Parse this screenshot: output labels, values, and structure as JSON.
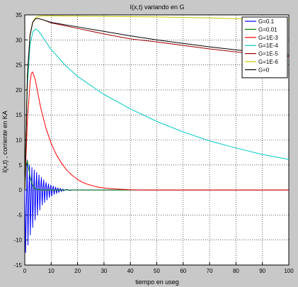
{
  "chart_data": {
    "type": "line",
    "title": "I(x,t) variando en G",
    "xlabel": "tiempo en useg",
    "ylabel": "I(x,t) , corriente en KA",
    "xlim": [
      0,
      100
    ],
    "ylim": [
      -15,
      35
    ],
    "xticks": [
      0,
      10,
      20,
      30,
      40,
      50,
      60,
      70,
      80,
      90,
      100
    ],
    "yticks": [
      -15,
      -10,
      -5,
      0,
      5,
      10,
      15,
      20,
      25,
      30,
      35
    ],
    "grid": true,
    "legend_position": "top-right",
    "background_color": "#ffffff",
    "figure_color": "#c8c8c8",
    "series": [
      {
        "name": "G=0.1",
        "color": "#0000ff",
        "points": [
          [
            0,
            0
          ],
          [
            0.3,
            -12.5
          ],
          [
            0.6,
            -4
          ],
          [
            0.9,
            6
          ],
          [
            1.2,
            -11
          ],
          [
            1.5,
            -2
          ],
          [
            1.8,
            5
          ],
          [
            2.1,
            -9
          ],
          [
            2.4,
            -1
          ],
          [
            2.7,
            4.5
          ],
          [
            3.0,
            -7.5
          ],
          [
            3.3,
            -0.5
          ],
          [
            3.6,
            4
          ],
          [
            3.9,
            -6
          ],
          [
            4.2,
            0
          ],
          [
            4.5,
            3.5
          ],
          [
            4.8,
            -5
          ],
          [
            5.1,
            0.5
          ],
          [
            5.4,
            3
          ],
          [
            5.7,
            -4
          ],
          [
            6.0,
            0.5
          ],
          [
            6.3,
            2.5
          ],
          [
            6.6,
            -3
          ],
          [
            6.9,
            0.5
          ],
          [
            7.2,
            2
          ],
          [
            7.5,
            -2.5
          ],
          [
            7.8,
            0.5
          ],
          [
            8.1,
            1.5
          ],
          [
            8.4,
            -2
          ],
          [
            8.7,
            0.3
          ],
          [
            9.0,
            1.2
          ],
          [
            9.3,
            -1.5
          ],
          [
            9.6,
            0.2
          ],
          [
            9.9,
            1
          ],
          [
            10.2,
            -1.2
          ],
          [
            10.5,
            0.2
          ],
          [
            10.8,
            0.8
          ],
          [
            11.1,
            -0.9
          ],
          [
            11.4,
            0.1
          ],
          [
            11.7,
            0.6
          ],
          [
            12,
            -0.7
          ],
          [
            12.3,
            0.1
          ],
          [
            12.6,
            0.4
          ],
          [
            12.9,
            -0.5
          ],
          [
            13.2,
            0.1
          ],
          [
            13.5,
            0.3
          ],
          [
            13.8,
            -0.3
          ],
          [
            14.1,
            0
          ],
          [
            14.4,
            0.2
          ],
          [
            14.7,
            -0.2
          ],
          [
            15,
            0
          ],
          [
            16,
            0.1
          ],
          [
            17,
            -0.1
          ],
          [
            18,
            0
          ],
          [
            20,
            0
          ],
          [
            100,
            0
          ]
        ]
      },
      {
        "name": "G=0.01",
        "color": "#008000",
        "points": [
          [
            0,
            0
          ],
          [
            0.5,
            5
          ],
          [
            1,
            5.8
          ],
          [
            1.5,
            4.2
          ],
          [
            2,
            2.6
          ],
          [
            3,
            0.9
          ],
          [
            4,
            0.2
          ],
          [
            6,
            0
          ],
          [
            100,
            0
          ]
        ]
      },
      {
        "name": "G=1E-3",
        "color": "#ff0000",
        "points": [
          [
            0,
            0
          ],
          [
            1,
            14
          ],
          [
            2,
            21.5
          ],
          [
            2.5,
            23.3
          ],
          [
            3,
            23.6
          ],
          [
            4,
            22
          ],
          [
            5,
            19.3
          ],
          [
            6,
            16.5
          ],
          [
            8,
            12.4
          ],
          [
            10,
            9.3
          ],
          [
            12,
            7
          ],
          [
            14,
            5.3
          ],
          [
            16,
            3.9
          ],
          [
            18,
            2.9
          ],
          [
            20,
            2.1
          ],
          [
            22,
            1.5
          ],
          [
            24,
            1.1
          ],
          [
            26,
            0.8
          ],
          [
            28,
            0.55
          ],
          [
            30,
            0.4
          ],
          [
            33,
            0.25
          ],
          [
            36,
            0.15
          ],
          [
            40,
            0.05
          ],
          [
            45,
            0
          ],
          [
            100,
            0
          ]
        ]
      },
      {
        "name": "G=1E-4",
        "color": "#00c8c8",
        "points": [
          [
            0,
            0
          ],
          [
            1,
            21
          ],
          [
            2,
            29
          ],
          [
            3,
            31.5
          ],
          [
            4,
            32.2
          ],
          [
            5,
            31.9
          ],
          [
            6,
            31.2
          ],
          [
            8,
            29.6
          ],
          [
            10,
            28.1
          ],
          [
            15,
            25.1
          ],
          [
            20,
            22.7
          ],
          [
            30,
            19.1
          ],
          [
            40,
            16.2
          ],
          [
            50,
            13.7
          ],
          [
            60,
            11.6
          ],
          [
            70,
            9.8
          ],
          [
            80,
            8.4
          ],
          [
            90,
            7.1
          ],
          [
            100,
            6.1
          ]
        ]
      },
      {
        "name": "G=1E-5",
        "color": "#a00000",
        "points": [
          [
            0,
            0
          ],
          [
            1,
            23
          ],
          [
            2,
            31
          ],
          [
            3,
            33.5
          ],
          [
            4,
            34.2
          ],
          [
            5,
            34.3
          ],
          [
            7,
            34
          ],
          [
            10,
            33.4
          ],
          [
            20,
            32.3
          ],
          [
            30,
            31.2
          ],
          [
            40,
            30.2
          ],
          [
            50,
            29.6
          ],
          [
            60,
            28.9
          ],
          [
            70,
            28.2
          ],
          [
            80,
            27.6
          ],
          [
            90,
            27.1
          ],
          [
            100,
            26.7
          ]
        ]
      },
      {
        "name": "G=1E-6",
        "color": "#c8c800",
        "points": [
          [
            0,
            0
          ],
          [
            1,
            23
          ],
          [
            2,
            31
          ],
          [
            3,
            33.5
          ],
          [
            4,
            34.4
          ],
          [
            5,
            34.7
          ],
          [
            7,
            34.8
          ],
          [
            10,
            34.8
          ],
          [
            30,
            34.7
          ],
          [
            50,
            34.6
          ],
          [
            70,
            34.4
          ],
          [
            100,
            33.9
          ]
        ]
      },
      {
        "name": "G=0",
        "color": "#000000",
        "points": [
          [
            0,
            0
          ],
          [
            1,
            23
          ],
          [
            2,
            31
          ],
          [
            3,
            33.5
          ],
          [
            4,
            34.2
          ],
          [
            5,
            34.3
          ],
          [
            7,
            34
          ],
          [
            10,
            33.5
          ],
          [
            20,
            32.6
          ],
          [
            30,
            31.7
          ],
          [
            40,
            30.8
          ],
          [
            50,
            30.0
          ],
          [
            60,
            29.3
          ],
          [
            70,
            28.6
          ],
          [
            80,
            28.0
          ],
          [
            90,
            27.5
          ],
          [
            100,
            27.0
          ]
        ]
      }
    ]
  }
}
